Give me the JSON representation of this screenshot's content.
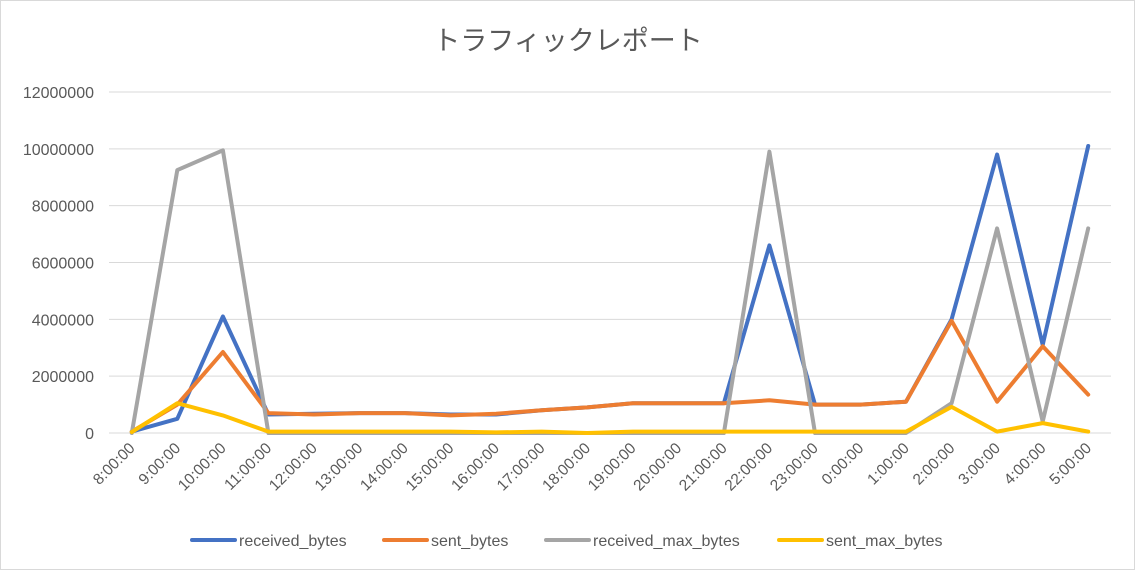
{
  "chart_data": {
    "type": "line",
    "title": "トラフィックレポート",
    "xlabel": "",
    "ylabel": "",
    "ylim": [
      0,
      12000000
    ],
    "yticks": [
      0,
      2000000,
      4000000,
      6000000,
      8000000,
      10000000,
      12000000
    ],
    "ytick_labels": [
      "0",
      "2000000",
      "4000000",
      "6000000",
      "8000000",
      "10000000",
      "12000000"
    ],
    "grid": true,
    "legend_position": "bottom",
    "categories": [
      "8:00:00",
      "9:00:00",
      "10:00:00",
      "11:00:00",
      "12:00:00",
      "13:00:00",
      "14:00:00",
      "15:00:00",
      "16:00:00",
      "17:00:00",
      "18:00:00",
      "19:00:00",
      "20:00:00",
      "21:00:00",
      "22:00:00",
      "23:00:00",
      "0:00:00",
      "1:00:00",
      "2:00:00",
      "3:00:00",
      "4:00:00",
      "5:00:00"
    ],
    "series": [
      {
        "name": "received_bytes",
        "color": "#4472c4",
        "values": [
          50000,
          500000,
          4100000,
          650000,
          680000,
          700000,
          700000,
          650000,
          650000,
          800000,
          900000,
          1050000,
          1050000,
          1050000,
          6600000,
          1000000,
          1000000,
          1100000,
          4000000,
          9800000,
          3100000,
          10100000
        ]
      },
      {
        "name": "sent_bytes",
        "color": "#ed7d31",
        "values": [
          50000,
          1000000,
          2850000,
          700000,
          650000,
          700000,
          700000,
          620000,
          680000,
          800000,
          900000,
          1050000,
          1050000,
          1050000,
          1150000,
          1000000,
          1000000,
          1100000,
          3950000,
          1100000,
          3050000,
          1350000
        ]
      },
      {
        "name": "received_max_bytes",
        "color": "#a5a5a5",
        "values": [
          0,
          9250000,
          9950000,
          0,
          0,
          0,
          0,
          0,
          0,
          0,
          0,
          0,
          0,
          0,
          9900000,
          0,
          0,
          0,
          1050000,
          7200000,
          400000,
          7200000
        ]
      },
      {
        "name": "sent_max_bytes",
        "color": "#ffc000",
        "values": [
          30000,
          1050000,
          620000,
          50000,
          50000,
          50000,
          50000,
          50000,
          20000,
          50000,
          0,
          50000,
          50000,
          50000,
          50000,
          50000,
          50000,
          50000,
          920000,
          50000,
          350000,
          50000
        ]
      }
    ]
  }
}
